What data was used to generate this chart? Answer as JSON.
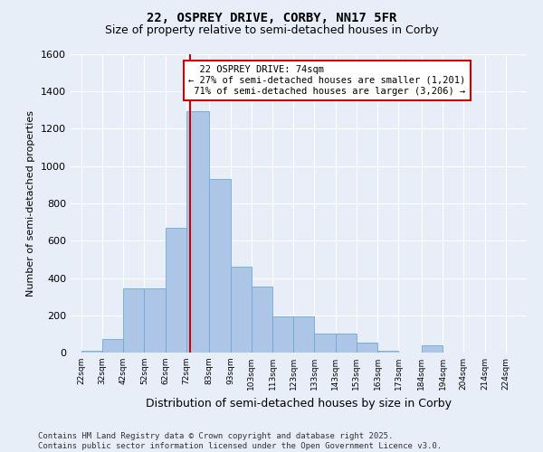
{
  "title": "22, OSPREY DRIVE, CORBY, NN17 5FR",
  "subtitle": "Size of property relative to semi-detached houses in Corby",
  "xlabel": "Distribution of semi-detached houses by size in Corby",
  "ylabel": "Number of semi-detached properties",
  "property_size": 74,
  "property_label": "22 OSPREY DRIVE: 74sqm",
  "pct_smaller": 27,
  "pct_larger": 71,
  "n_smaller": 1201,
  "n_larger": 3206,
  "bar_left_edges": [
    22,
    32,
    42,
    52,
    62,
    72,
    83,
    93,
    103,
    113,
    123,
    133,
    143,
    153,
    163,
    173,
    184,
    194,
    204,
    214
  ],
  "bar_widths": [
    10,
    10,
    10,
    10,
    10,
    11,
    10,
    10,
    10,
    10,
    10,
    10,
    10,
    10,
    10,
    11,
    10,
    10,
    10,
    10
  ],
  "bar_heights": [
    10,
    75,
    345,
    345,
    670,
    1295,
    930,
    460,
    355,
    195,
    195,
    100,
    100,
    55,
    10,
    0,
    40,
    0,
    0,
    0
  ],
  "bar_color": "#adc6e8",
  "bar_edge_color": "#6aaad4",
  "vline_x": 74,
  "vline_color": "#cc0000",
  "ylim": [
    0,
    1600
  ],
  "yticks": [
    0,
    200,
    400,
    600,
    800,
    1000,
    1200,
    1400,
    1600
  ],
  "xtick_labels": [
    "22sqm",
    "32sqm",
    "42sqm",
    "52sqm",
    "62sqm",
    "72sqm",
    "83sqm",
    "93sqm",
    "103sqm",
    "113sqm",
    "123sqm",
    "133sqm",
    "143sqm",
    "153sqm",
    "163sqm",
    "173sqm",
    "184sqm",
    "194sqm",
    "204sqm",
    "214sqm",
    "224sqm"
  ],
  "bg_color": "#e8eef8",
  "plot_bg_color": "#e8eef8",
  "title_fontsize": 10,
  "subtitle_fontsize": 9,
  "ylabel_fontsize": 8,
  "xlabel_fontsize": 9,
  "annotation_fontsize": 7.5,
  "ytick_fontsize": 8,
  "xtick_fontsize": 6.5,
  "footer_text": "Contains HM Land Registry data © Crown copyright and database right 2025.\nContains public sector information licensed under the Open Government Licence v3.0.",
  "footer_fontsize": 6.5,
  "grid_color": "#ffffff",
  "xlim": [
    17,
    234
  ]
}
